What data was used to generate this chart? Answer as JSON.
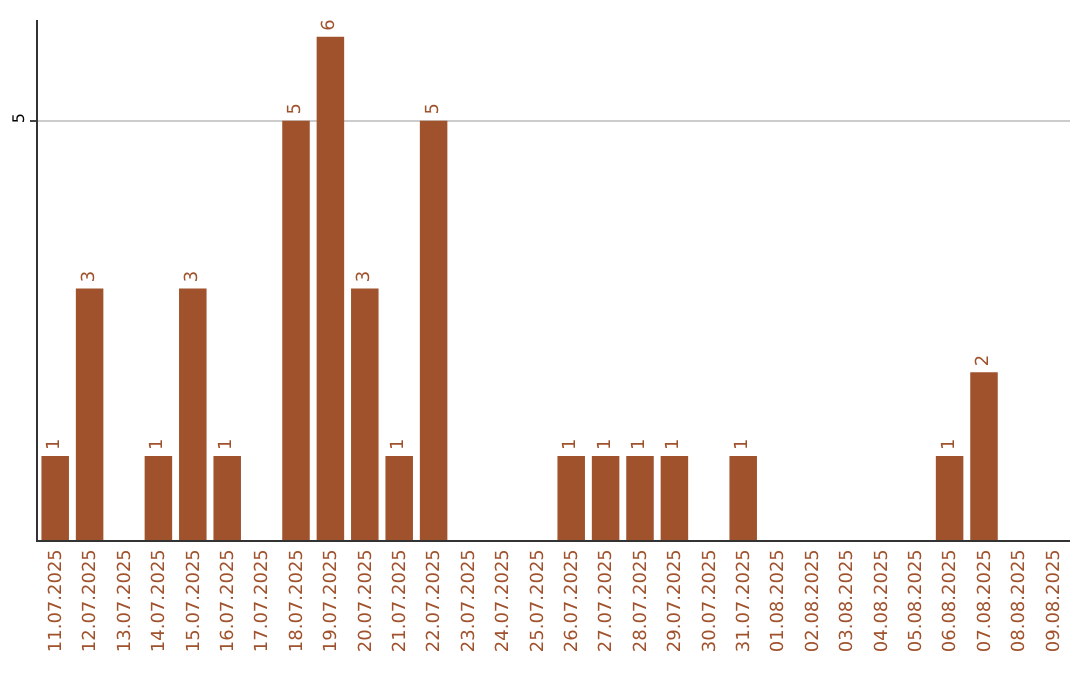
{
  "chart_data": {
    "type": "bar",
    "categories": [
      "11.07.2025",
      "12.07.2025",
      "13.07.2025",
      "14.07.2025",
      "15.07.2025",
      "16.07.2025",
      "17.07.2025",
      "18.07.2025",
      "19.07.2025",
      "20.07.2025",
      "21.07.2025",
      "22.07.2025",
      "23.07.2025",
      "24.07.2025",
      "25.07.2025",
      "26.07.2025",
      "27.07.2025",
      "28.07.2025",
      "29.07.2025",
      "30.07.2025",
      "31.07.2025",
      "01.08.2025",
      "02.08.2025",
      "03.08.2025",
      "04.08.2025",
      "05.08.2025",
      "06.08.2025",
      "07.08.2025",
      "08.08.2025",
      "09.08.2025"
    ],
    "values": [
      1,
      3,
      0,
      1,
      3,
      1,
      0,
      5,
      6,
      3,
      1,
      5,
      0,
      0,
      0,
      1,
      1,
      1,
      1,
      0,
      1,
      0,
      0,
      0,
      0,
      0,
      1,
      2,
      0,
      0
    ],
    "value_labels": [
      "1",
      "3",
      null,
      "1",
      "3",
      "1",
      null,
      "5",
      "6",
      "3",
      "1",
      "5",
      null,
      null,
      null,
      "1",
      "1",
      "1",
      "1",
      null,
      "1",
      null,
      null,
      null,
      null,
      null,
      "1",
      "2",
      null,
      null
    ],
    "color": "#a0522d",
    "ylim": [
      0,
      6.2
    ],
    "yticks": [
      5
    ],
    "grid": "y"
  }
}
